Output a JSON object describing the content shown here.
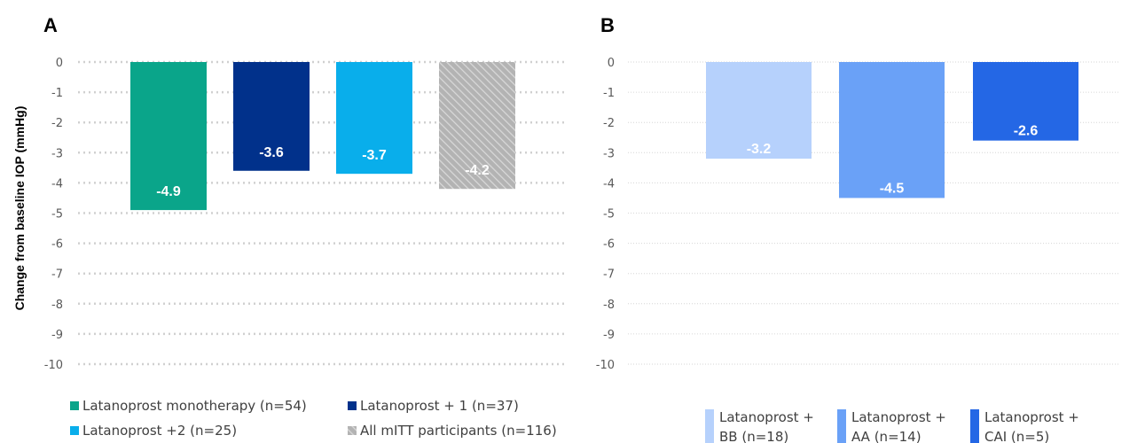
{
  "chart_data": [
    {
      "panel": "A",
      "type": "bar",
      "ylabel": "Change from baseline IOP (mmHg)",
      "ylim": [
        -10,
        0
      ],
      "yticks": [
        "0",
        "-1",
        "-2",
        "-3",
        "-4",
        "-5",
        "-6",
        "-7",
        "-8",
        "-9",
        "-10"
      ],
      "grid": true,
      "series": [
        {
          "name": "Latanoprost monotherapy (n=54)",
          "value": -4.9,
          "label": "-4.9",
          "color": "#0aa58a",
          "pattern": "solid"
        },
        {
          "name": "Latanoprost + 1 (n=37)",
          "value": -3.6,
          "label": "-3.6",
          "color": "#01318b",
          "pattern": "solid"
        },
        {
          "name": "Latanoprost +2 (n=25)",
          "value": -3.7,
          "label": "-3.7",
          "color": "#09aeeb",
          "pattern": "solid"
        },
        {
          "name": "All mITT participants (n=116)",
          "value": -4.2,
          "label": "-4.2",
          "color": "#a6a6a6",
          "pattern": "hatched"
        }
      ],
      "legend_position": "bottom"
    },
    {
      "panel": "B",
      "type": "bar",
      "ylim": [
        -10,
        0
      ],
      "yticks": [
        "0",
        "-1",
        "-2",
        "-3",
        "-4",
        "-5",
        "-6",
        "-7",
        "-8",
        "-9",
        "-10"
      ],
      "grid": true,
      "series": [
        {
          "name": "Latanoprost + BB (n=18)",
          "legend_lines": [
            "Latanoprost +",
            "BB (n=18)"
          ],
          "value": -3.2,
          "label": "-3.2",
          "color": "#b6d1fc"
        },
        {
          "name": "Latanoprost + AA (n=14)",
          "legend_lines": [
            "Latanoprost +",
            "AA (n=14)"
          ],
          "value": -4.5,
          "label": "-4.5",
          "color": "#6aa1f7"
        },
        {
          "name": "Latanoprost + CAI (n=5)",
          "legend_lines": [
            "Latanoprost +",
            "CAI (n=5)"
          ],
          "value": -2.6,
          "label": "-2.6",
          "color": "#2467e5"
        }
      ],
      "legend_position": "bottom"
    }
  ]
}
